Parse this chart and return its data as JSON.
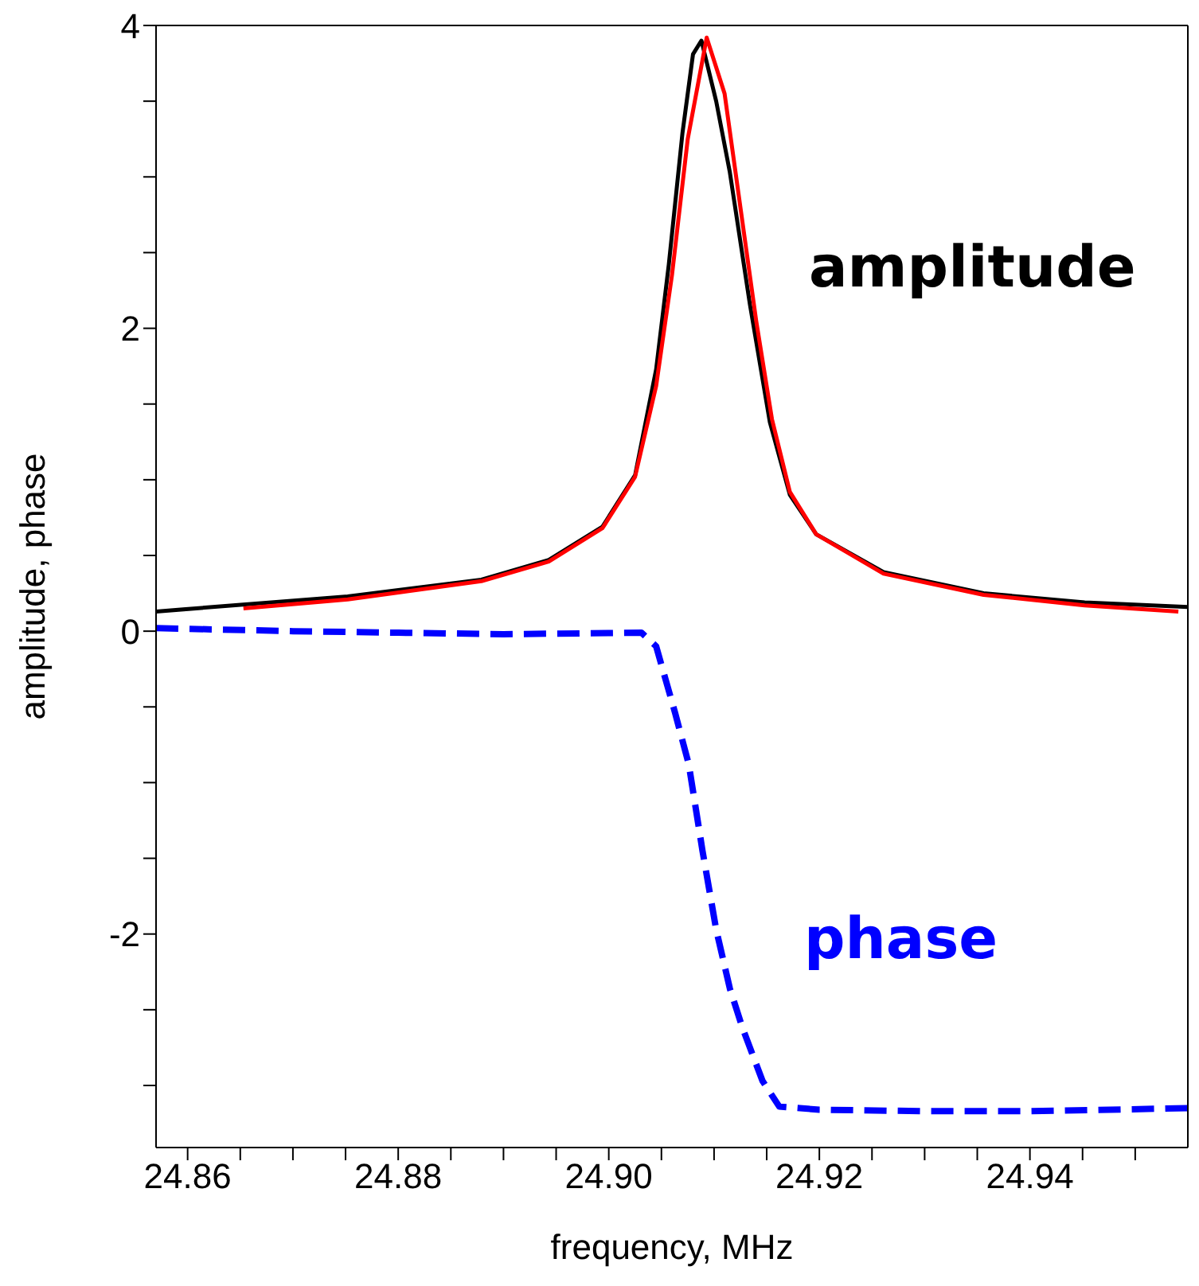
{
  "chart_data": {
    "type": "line",
    "xlabel": "frequency, MHz",
    "ylabel": "amplitude, phase",
    "marker": "none",
    "xlim": [
      24.857,
      24.955
    ],
    "ylim": [
      -3.41,
      4
    ],
    "xticks": [
      24.86,
      {
        "value": 24.865,
        "label": null
      },
      24.88,
      {
        "value": 24.875,
        "label": null
      },
      {
        "value": 24.87,
        "label": null
      },
      {
        "value": 24.885,
        "label": null
      },
      {
        "value": 24.9,
        "label": "24.90"
      },
      {
        "value": 24.89,
        "label": null
      },
      {
        "value": 24.895,
        "label": null
      },
      {
        "value": 24.905,
        "label": null
      },
      {
        "value": 24.91,
        "label": null
      },
      {
        "value": 24.915,
        "label": null
      },
      24.92,
      {
        "value": 24.925,
        "label": null
      },
      {
        "value": 24.93,
        "label": null
      },
      {
        "value": 24.935,
        "label": null
      },
      24.94,
      {
        "value": 24.945,
        "label": null
      },
      {
        "value": 24.95,
        "label": null
      }
    ],
    "yticks": [
      -2,
      0,
      2,
      4,
      {
        "value": -3,
        "label": null
      },
      {
        "value": -2.5,
        "label": null
      },
      {
        "value": -1.5,
        "label": null
      },
      {
        "value": -1,
        "label": null
      },
      {
        "value": -0.5,
        "label": null
      },
      {
        "value": 0.5,
        "label": null
      },
      {
        "value": 1,
        "label": null
      },
      {
        "value": 1.5,
        "label": null
      },
      {
        "value": 2.5,
        "label": null
      },
      {
        "value": 3,
        "label": null
      },
      {
        "value": 3.5,
        "label": null
      }
    ],
    "series": [
      {
        "name": "amplitude",
        "color": "#000000",
        "line_style": "solid",
        "x": [
          24.857,
          24.8752,
          24.8879,
          24.8943,
          24.8994,
          24.9025,
          24.9045,
          24.9057,
          24.907,
          24.908,
          24.9088,
          24.9102,
          24.9115,
          24.9134,
          24.9153,
          24.9172,
          24.9197,
          24.9261,
          24.9356,
          24.9452,
          24.955
        ],
        "values": [
          0.13,
          0.23,
          0.34,
          0.47,
          0.69,
          1.03,
          1.73,
          2.42,
          3.29,
          3.81,
          3.9,
          3.5,
          3.03,
          2.16,
          1.38,
          0.9,
          0.64,
          0.39,
          0.25,
          0.19,
          0.16
        ]
      },
      {
        "color": "#ff0000",
        "line_style": "solid",
        "x": [
          24.8653,
          24.8752,
          24.8879,
          24.8943,
          24.8994,
          24.9025,
          24.9045,
          24.906,
          24.9075,
          24.9093,
          24.911,
          24.9125,
          24.914,
          24.9155,
          24.9172,
          24.9197,
          24.9261,
          24.9356,
          24.9452,
          24.9541
        ],
        "values": [
          0.15,
          0.21,
          0.33,
          0.46,
          0.68,
          1.02,
          1.62,
          2.35,
          3.25,
          3.92,
          3.55,
          2.8,
          2.05,
          1.4,
          0.92,
          0.64,
          0.38,
          0.24,
          0.17,
          0.13
        ]
      },
      {
        "name": "phase",
        "color": "#0000ff",
        "line_style": "dashed",
        "x": [
          24.857,
          24.87,
          24.88,
          24.89,
          24.9031,
          24.9045,
          24.9063,
          24.9076,
          24.9089,
          24.9102,
          24.9115,
          24.9127,
          24.9146,
          24.9162,
          24.92,
          24.93,
          24.94,
          24.955
        ],
        "values": [
          0.02,
          0,
          -0.01,
          -0.02,
          -0.01,
          -0.1,
          -0.54,
          -0.88,
          -1.45,
          -1.97,
          -2.36,
          -2.62,
          -2.97,
          -3.14,
          -3.16,
          -3.17,
          -3.17,
          -3.15
        ]
      }
    ]
  }
}
